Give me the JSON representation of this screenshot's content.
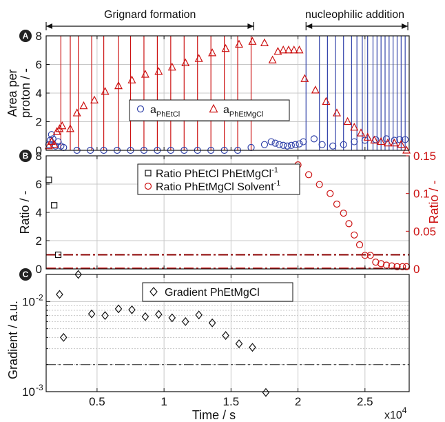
{
  "colors": {
    "red": "#cc1111",
    "blue": "#3344aa",
    "darkred": "#8b0000",
    "black": "#111111",
    "grid": "#c8c8c8",
    "badge": "#222222"
  },
  "annotations": {
    "grignard": "Grignard formation",
    "nucleophilic": "nucleophilic addition",
    "grignard_range": [
      1200,
      16700
    ],
    "nucleophilic_range": [
      20600,
      28200
    ]
  },
  "xaxis": {
    "label": "Time / s",
    "exponent": "x10",
    "exponent_power": "4",
    "range": [
      1200,
      28300
    ],
    "ticks": [
      5000,
      10000,
      15000,
      20000,
      25000
    ],
    "tick_labels": [
      "0.5",
      "1",
      "1.5",
      "2",
      "2.5"
    ]
  },
  "chart_data": [
    {
      "panel": "A",
      "type": "scatter",
      "ylabel": "Area per proton / -",
      "ylabel_lines": [
        "Area per",
        "proton / -"
      ],
      "ylim": [
        0,
        8
      ],
      "yticks": [
        0,
        2,
        4,
        6,
        8
      ],
      "grid": true,
      "legend_position": "bottom-center",
      "vertical_lines_red": [
        2300,
        3000,
        3600,
        4600,
        5500,
        6600,
        7500,
        8500,
        9500,
        10500,
        11500,
        12500,
        13500,
        14500,
        15500,
        16500
      ],
      "vertical_lines_blue": [
        20600,
        21600,
        22200,
        22800,
        23400,
        24000,
        24400,
        24800,
        25200,
        25600,
        25900,
        26200,
        26500,
        26800,
        27100,
        27400,
        27700,
        28000
      ],
      "series": [
        {
          "name": "a",
          "name_sub": "PhEtCl",
          "marker": "circle",
          "color": "blue",
          "points": [
            [
              1400,
              0.4
            ],
            [
              1500,
              0.7
            ],
            [
              1600,
              1.1
            ],
            [
              1700,
              0.8
            ],
            [
              1900,
              0.3
            ],
            [
              2100,
              0.6
            ],
            [
              2300,
              0.3
            ],
            [
              2500,
              0.2
            ],
            [
              3500,
              0.0
            ],
            [
              4500,
              0.0
            ],
            [
              5500,
              0.0
            ],
            [
              6500,
              0.0
            ],
            [
              7500,
              0.0
            ],
            [
              8500,
              0.0
            ],
            [
              9500,
              0.0
            ],
            [
              10500,
              0.0
            ],
            [
              11500,
              0.0
            ],
            [
              12500,
              0.0
            ],
            [
              13500,
              0.0
            ],
            [
              14500,
              0.0
            ],
            [
              15500,
              0.0
            ],
            [
              16500,
              0.2
            ],
            [
              17500,
              0.4
            ],
            [
              18000,
              0.6
            ],
            [
              18300,
              0.5
            ],
            [
              18600,
              0.4
            ],
            [
              18900,
              0.35
            ],
            [
              19200,
              0.3
            ],
            [
              19500,
              0.35
            ],
            [
              19800,
              0.4
            ],
            [
              20100,
              0.45
            ],
            [
              20400,
              0.6
            ],
            [
              21200,
              0.8
            ],
            [
              21800,
              0.4
            ],
            [
              22600,
              0.3
            ],
            [
              23400,
              0.4
            ],
            [
              24200,
              0.6
            ],
            [
              25000,
              0.7
            ],
            [
              25800,
              0.75
            ],
            [
              26600,
              0.8
            ],
            [
              27200,
              0.7
            ],
            [
              27600,
              0.75
            ],
            [
              28000,
              0.75
            ]
          ]
        },
        {
          "name": "a",
          "name_sub": "PhEtMgCl",
          "marker": "triangle",
          "color": "red",
          "points": [
            [
              1400,
              0.3
            ],
            [
              1600,
              0.6
            ],
            [
              1800,
              0.4
            ],
            [
              2000,
              1.3
            ],
            [
              2200,
              1.5
            ],
            [
              2400,
              1.7
            ],
            [
              3000,
              1.5
            ],
            [
              3500,
              2.6
            ],
            [
              4000,
              3.1
            ],
            [
              4800,
              3.5
            ],
            [
              5600,
              4.1
            ],
            [
              6600,
              4.5
            ],
            [
              7600,
              4.9
            ],
            [
              8600,
              5.3
            ],
            [
              9600,
              5.5
            ],
            [
              10600,
              5.8
            ],
            [
              11600,
              6.1
            ],
            [
              12600,
              6.4
            ],
            [
              13600,
              6.8
            ],
            [
              14600,
              7.1
            ],
            [
              15600,
              7.4
            ],
            [
              16600,
              7.6
            ],
            [
              17500,
              7.5
            ],
            [
              18100,
              6.3
            ],
            [
              18500,
              6.9
            ],
            [
              18900,
              7.0
            ],
            [
              19300,
              7.0
            ],
            [
              19700,
              7.0
            ],
            [
              20100,
              7.0
            ],
            [
              20500,
              5.0
            ],
            [
              21300,
              4.2
            ],
            [
              22100,
              3.4
            ],
            [
              22900,
              2.6
            ],
            [
              23700,
              2.0
            ],
            [
              24200,
              1.6
            ],
            [
              24700,
              1.2
            ],
            [
              25200,
              0.9
            ],
            [
              25700,
              0.7
            ],
            [
              26200,
              0.6
            ],
            [
              26700,
              0.5
            ],
            [
              27200,
              0.5
            ],
            [
              27700,
              0.4
            ],
            [
              28100,
              0.0
            ]
          ]
        }
      ]
    },
    {
      "panel": "B",
      "type": "scatter",
      "ylabel_left": "Ratio / -",
      "ylabel_right": "Ratio / -",
      "ylim_left": [
        0,
        8
      ],
      "ylim_right": [
        0,
        0.15
      ],
      "yticks_left": [
        0,
        2,
        4,
        6,
        8
      ],
      "yticks_right": [
        0,
        0.05,
        0.1,
        0.15
      ],
      "ytick_labels_right": [
        "0",
        "0.05",
        "0.1",
        "0.15"
      ],
      "grid": true,
      "legend_position": "top-left",
      "threshold_left": 1.0,
      "threshold_right": 0.0,
      "series": [
        {
          "name": "Ratio PhEtCl PhEtMgCl",
          "name_sup": "-1",
          "axis": "left",
          "marker": "square",
          "color": "black",
          "points": [
            [
              1400,
              6.3
            ],
            [
              1800,
              4.5
            ],
            [
              2100,
              1.0
            ]
          ]
        },
        {
          "name": "Ratio PhEtMgCl Solvent",
          "name_sup": "-1",
          "axis": "right",
          "marker": "circle",
          "color": "red",
          "points": [
            [
              20000,
              0.138
            ],
            [
              20800,
              0.125
            ],
            [
              21600,
              0.112
            ],
            [
              22400,
              0.1
            ],
            [
              22900,
              0.086
            ],
            [
              23400,
              0.074
            ],
            [
              23800,
              0.06
            ],
            [
              24200,
              0.045
            ],
            [
              24600,
              0.032
            ],
            [
              25000,
              0.018
            ],
            [
              25400,
              0.018
            ],
            [
              25800,
              0.009
            ],
            [
              26200,
              0.007
            ],
            [
              26600,
              0.005
            ],
            [
              27000,
              0.004
            ],
            [
              27400,
              0.003
            ],
            [
              27800,
              0.003
            ],
            [
              28100,
              0.003
            ]
          ]
        }
      ]
    },
    {
      "panel": "C",
      "type": "scatter",
      "ylabel": "Gradient / a.u.",
      "yscale": "log",
      "ylim": [
        0.001,
        0.02
      ],
      "ytick_labels": [
        {
          "base": "10",
          "exp": "-2",
          "value": 0.01
        },
        {
          "base": "10",
          "exp": "-3",
          "value": 0.001
        }
      ],
      "grid": true,
      "legend_position": "top-center",
      "threshold": 0.002,
      "series": [
        {
          "name": "Gradient PhEtMgCl",
          "marker": "diamond",
          "color": "black",
          "points": [
            [
              2200,
              0.012
            ],
            [
              2500,
              0.004
            ],
            [
              3600,
              0.02
            ],
            [
              4600,
              0.0073
            ],
            [
              5600,
              0.007
            ],
            [
              6600,
              0.0083
            ],
            [
              7600,
              0.0081
            ],
            [
              8600,
              0.0068
            ],
            [
              9600,
              0.0072
            ],
            [
              10600,
              0.0066
            ],
            [
              11600,
              0.006
            ],
            [
              12600,
              0.0071
            ],
            [
              13600,
              0.0058
            ],
            [
              14600,
              0.0042
            ],
            [
              15600,
              0.0034
            ],
            [
              16600,
              0.0031
            ],
            [
              17600,
              0.00098
            ]
          ]
        }
      ]
    }
  ]
}
